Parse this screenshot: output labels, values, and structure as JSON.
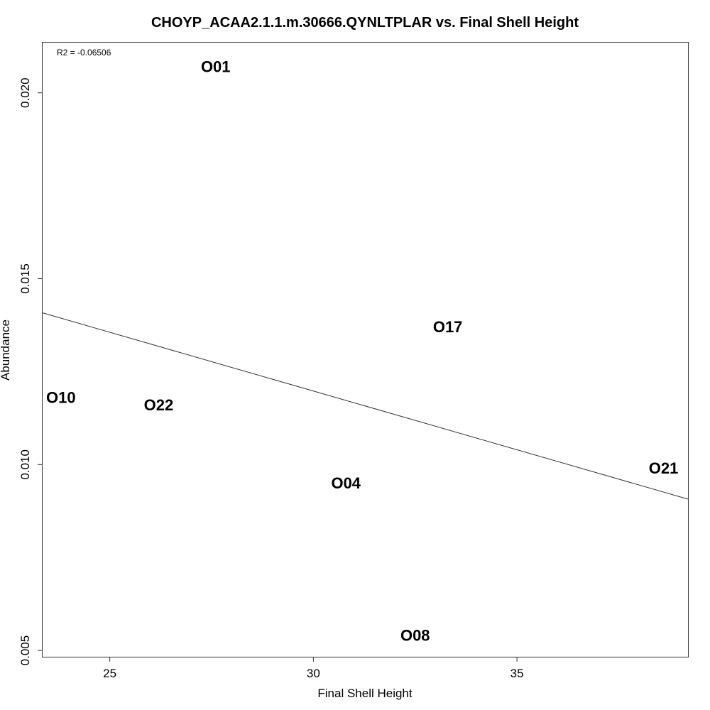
{
  "chart_data": {
    "type": "scatter",
    "title": "CHOYP_ACAA2.1.1.m.30666.QYNLTPLAR vs. Final Shell Height",
    "xlabel": "Final Shell Height",
    "ylabel": "Abundance",
    "annotation": "R2 = -0.06506",
    "xlim": [
      23.35,
      39.2
    ],
    "ylim": [
      0.00483,
      0.02135
    ],
    "x_ticks": [
      25,
      30,
      35
    ],
    "x_tick_labels": [
      "25",
      "30",
      "35"
    ],
    "y_ticks": [
      0.005,
      0.01,
      0.015,
      0.02
    ],
    "y_tick_labels": [
      "0.005",
      "0.010",
      "0.015",
      "0.020"
    ],
    "grid": false,
    "points": [
      {
        "label": "O01",
        "x": 27.6,
        "y": 0.0207
      },
      {
        "label": "O17",
        "x": 33.3,
        "y": 0.0137
      },
      {
        "label": "O10",
        "x": 23.8,
        "y": 0.0118
      },
      {
        "label": "O22",
        "x": 26.2,
        "y": 0.0116
      },
      {
        "label": "O04",
        "x": 30.8,
        "y": 0.0095
      },
      {
        "label": "O21",
        "x": 38.6,
        "y": 0.0099
      },
      {
        "label": "O08",
        "x": 32.5,
        "y": 0.0054
      }
    ],
    "fit_line": {
      "x": [
        23.35,
        39.2
      ],
      "y": [
        0.01408,
        0.00907
      ]
    }
  }
}
